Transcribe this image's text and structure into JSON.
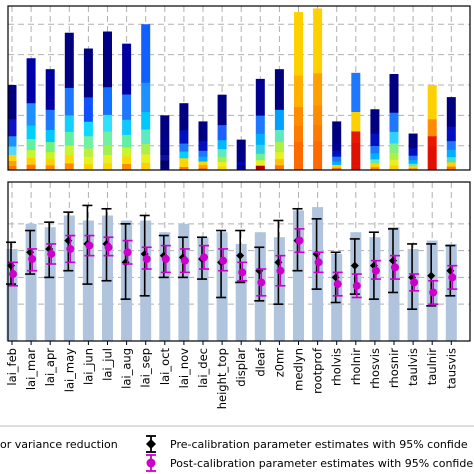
{
  "chart_data": [
    {
      "type": "bar",
      "subtype": "stacked",
      "panel": "top",
      "categories": [
        "lai_feb",
        "lai_mar",
        "lai_apr",
        "lai_may",
        "lai_jun",
        "lai_jul",
        "lai_aug",
        "lai_sep",
        "lai_oct",
        "lai_nov",
        "lai_dec",
        "height_top",
        "displar",
        "dleaf",
        "z0mr",
        "medlyn",
        "rootprof",
        "rholvis",
        "rholnir",
        "rhosvis",
        "rhosnir",
        "taulvis",
        "taulnir",
        "tausvis"
      ],
      "values": [
        0.7,
        0.92,
        0.83,
        1.13,
        1.0,
        1.14,
        1.04,
        1.2,
        0.45,
        0.55,
        0.4,
        0.62,
        0.25,
        0.75,
        0.83,
        1.3,
        1.33,
        0.4,
        0.8,
        0.5,
        0.79,
        0.3,
        0.7,
        0.6
      ],
      "stack_colors": [
        [
          "#ff7700",
          "#ff9f00",
          "#ffd700",
          "#5ad7ff",
          "#1e90ff",
          "#1010c8",
          "#000080"
        ],
        [
          "#ff7700",
          "#ffd000",
          "#c8f52f",
          "#5ff0a0",
          "#00d0ff",
          "#1e90ff",
          "#0000aa"
        ],
        [
          "#ff8c00",
          "#ffd000",
          "#d0f020",
          "#70f080",
          "#00c8ff",
          "#1e78ff",
          "#0000a0"
        ],
        [
          "#ff8c00",
          "#ffd700",
          "#c8f52f",
          "#5ff0a0",
          "#10d0ff",
          "#1e78ff",
          "#000080"
        ],
        [
          "#ffd000",
          "#e8f020",
          "#b8f040",
          "#70f0a0",
          "#10d8ff",
          "#1050ff",
          "#000080"
        ],
        [
          "#ffd700",
          "#e8f020",
          "#a0f050",
          "#70f0a0",
          "#30e0ff",
          "#1070ff",
          "#000080"
        ],
        [
          "#ff8c00",
          "#ffd700",
          "#c8f52f",
          "#5ff0a0",
          "#10c8ff",
          "#1e78ff",
          "#0000a0"
        ],
        [
          "#ffd000",
          "#e8f020",
          "#a8f050",
          "#60e8c0",
          "#00c8ff",
          "#1e90ff",
          "#1060ff"
        ],
        [
          "#000080",
          "#000070",
          "#000060",
          "#1010a0",
          "#000080",
          "#00008a",
          "#000080"
        ],
        [
          "#ff7700",
          "#ffd700",
          "#ffd700",
          "#00d0ff",
          "#1e78ff",
          "#0010c0",
          "#000080"
        ],
        [
          "#ff7700",
          "#ffa500",
          "#ffd700",
          "#00b0ff",
          "#1e78ff",
          "#0010c0",
          "#000080"
        ],
        [
          "#ffd700",
          "#e8f020",
          "#a0f050",
          "#60e8c0",
          "#00b8ff",
          "#1e60ff",
          "#000080"
        ],
        [
          "#000080",
          "#0000a0",
          "#000080",
          "#0000c0",
          "#000080",
          "#000090",
          "#000080"
        ],
        [
          "#b00000",
          "#e8f020",
          "#70f090",
          "#30d0e0",
          "#00b0ff",
          "#1e78ff",
          "#000090"
        ],
        [
          "#ff7700",
          "#ffc000",
          "#e8f020",
          "#b0f040",
          "#60e8c0",
          "#00a0ff",
          "#000080"
        ],
        [
          "#ff6a00",
          "#ff6a00",
          "#ff6a00",
          "#ff7a00",
          "#ff8c00",
          "#ffb000",
          "#ffd000"
        ],
        [
          "#ff6a00",
          "#ff6a00",
          "#ff6a00",
          "#ff7a00",
          "#ff8c00",
          "#ffa000",
          "#ffd000"
        ],
        [
          "#ff7700",
          "#ffd000",
          "#00b0ff",
          "#1e78ff",
          "#0010c0",
          "#000090",
          "#000080"
        ],
        [
          "#e01000",
          "#e01000",
          "#e01000",
          "#e01000",
          "#e81800",
          "#ffd000",
          "#1e78ff"
        ],
        [
          "#ff8c00",
          "#ffd700",
          "#60e8c0",
          "#00b0ff",
          "#1e78ff",
          "#0010c0",
          "#000080"
        ],
        [
          "#ffd000",
          "#e8f020",
          "#b0f040",
          "#80f080",
          "#30d0ff",
          "#1e78ff",
          "#000080"
        ],
        [
          "#ff7700",
          "#ffd700",
          "#60e8c0",
          "#00b0ff",
          "#1e78ff",
          "#0010c0",
          "#000080"
        ],
        [
          "#e01000",
          "#e01000",
          "#e01000",
          "#e01000",
          "#e81800",
          "#ff8c00",
          "#ffd000"
        ],
        [
          "#ff7700",
          "#ffd000",
          "#40e0d0",
          "#00b0ff",
          "#1e78ff",
          "#0010c0",
          "#000080"
        ]
      ],
      "ylim": [
        0,
        1.35
      ],
      "grid": true
    },
    {
      "type": "scatter",
      "subtype": "errorbar",
      "panel": "bottom",
      "categories": [
        "lai_feb",
        "lai_mar",
        "lai_apr",
        "lai_may",
        "lai_jun",
        "lai_jul",
        "lai_aug",
        "lai_sep",
        "lai_oct",
        "lai_nov",
        "lai_dec",
        "height_top",
        "displar",
        "dleaf",
        "z0mr",
        "medlyn",
        "rootprof",
        "rholvis",
        "rholnir",
        "rhosvis",
        "rhosnir",
        "taulvis",
        "taulnir",
        "tausvis"
      ],
      "prior_bar_top": [
        0.95,
        1.1,
        1.08,
        1.15,
        1.12,
        1.15,
        1.12,
        1.12,
        1.05,
        1.1,
        1.02,
        1.05,
        0.98,
        1.05,
        1.02,
        1.18,
        1.2,
        0.92,
        1.05,
        1.02,
        1.08,
        0.95,
        1.0,
        0.98
      ],
      "series": [
        {
          "name": "Pre-calibration parameter estimates with 95% confidence",
          "color": "#000000",
          "values": [
            0.85,
            0.93,
            0.95,
            1.0,
            0.98,
            0.98,
            0.87,
            0.92,
            0.91,
            0.9,
            0.89,
            0.87,
            0.91,
            0.82,
            0.87,
            1.0,
            0.92,
            0.78,
            0.85,
            0.85,
            0.88,
            0.78,
            0.79,
            0.82
          ],
          "err_low": [
            0.74,
            0.8,
            0.78,
            0.82,
            0.74,
            0.76,
            0.65,
            0.67,
            0.78,
            0.78,
            0.77,
            0.66,
            0.75,
            0.64,
            0.62,
            0.82,
            0.71,
            0.63,
            0.68,
            0.65,
            0.69,
            0.59,
            0.61,
            0.67
          ],
          "err_high": [
            0.99,
            1.06,
            1.11,
            1.17,
            1.21,
            1.19,
            1.1,
            1.15,
            1.03,
            1.02,
            1.02,
            1.06,
            1.06,
            0.96,
            1.12,
            1.19,
            1.13,
            0.93,
            1.01,
            1.05,
            1.07,
            0.98,
            0.98,
            0.97
          ]
        },
        {
          "name": "Post-calibration parameter estimates with 95% confidence",
          "color": "#cc00cc",
          "values": [
            0.8,
            0.89,
            0.92,
            0.95,
            0.97,
            0.96,
            0.93,
            0.89,
            0.89,
            0.88,
            0.9,
            0.88,
            0.81,
            0.75,
            0.82,
            1.0,
            0.87,
            0.74,
            0.73,
            0.82,
            0.84,
            0.75,
            0.69,
            0.78
          ],
          "err_low": [
            0.73,
            0.82,
            0.86,
            0.87,
            0.91,
            0.91,
            0.86,
            0.83,
            0.81,
            0.81,
            0.83,
            0.82,
            0.76,
            0.67,
            0.73,
            0.93,
            0.81,
            0.67,
            0.66,
            0.77,
            0.77,
            0.7,
            0.62,
            0.71
          ],
          "err_high": [
            0.87,
            0.95,
            0.98,
            1.03,
            1.03,
            1.02,
            1.0,
            0.96,
            0.97,
            0.95,
            0.97,
            0.95,
            0.87,
            0.83,
            0.91,
            1.07,
            0.93,
            0.81,
            0.8,
            0.88,
            0.91,
            0.8,
            0.76,
            0.85
          ]
        }
      ],
      "ylim": [
        0.4,
        1.35
      ],
      "grid": true
    }
  ],
  "legend": {
    "items": [
      {
        "label": "or variance reduction",
        "marker": "none"
      },
      {
        "label": "Pre-calibration parameter estimates with 95% confide",
        "marker": "black-diamond"
      },
      {
        "label": "Post-calibration parameter estimates with 95% confide",
        "marker": "magenta-circle"
      }
    ]
  }
}
